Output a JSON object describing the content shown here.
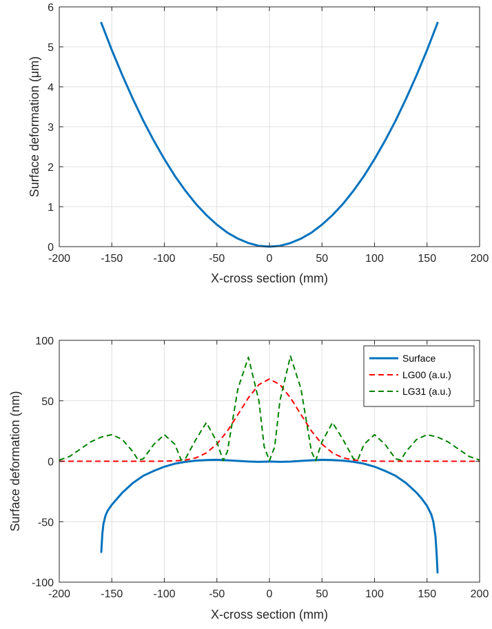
{
  "chart_data": [
    {
      "type": "line",
      "title": "",
      "xlabel": "X-cross section (mm)",
      "ylabel": "Surface deformation (μm)",
      "xlim": [
        -200,
        200
      ],
      "ylim": [
        0,
        6
      ],
      "xticks": [
        -200,
        -150,
        -100,
        -50,
        0,
        50,
        100,
        150,
        200
      ],
      "yticks": [
        0,
        1,
        2,
        3,
        4,
        5,
        6
      ],
      "grid": true,
      "series": [
        {
          "color": "#0072BD",
          "style": "solid",
          "x": [
            -160,
            -150,
            -140,
            -130,
            -120,
            -110,
            -100,
            -90,
            -80,
            -70,
            -60,
            -50,
            -40,
            -30,
            -20,
            -10,
            0,
            10,
            20,
            30,
            40,
            50,
            60,
            70,
            80,
            90,
            100,
            110,
            120,
            130,
            140,
            150,
            160
          ],
          "y": [
            5.6,
            4.92,
            4.29,
            3.7,
            3.15,
            2.65,
            2.19,
            1.77,
            1.4,
            1.07,
            0.79,
            0.55,
            0.35,
            0.2,
            0.09,
            0.02,
            0.0,
            0.02,
            0.09,
            0.2,
            0.35,
            0.55,
            0.79,
            1.07,
            1.4,
            1.77,
            2.19,
            2.65,
            3.15,
            3.7,
            4.29,
            4.92,
            5.6
          ]
        }
      ]
    },
    {
      "type": "line",
      "title": "",
      "xlabel": "X-cross section (mm)",
      "ylabel": "Surface deformation (nm)",
      "xlim": [
        -200,
        200
      ],
      "ylim": [
        -100,
        100
      ],
      "xticks": [
        -200,
        -150,
        -100,
        -50,
        0,
        50,
        100,
        150,
        200
      ],
      "yticks": [
        -100,
        -50,
        0,
        50,
        100
      ],
      "grid": true,
      "legend": "top-right",
      "series": [
        {
          "name": "Surface",
          "color": "#0072BD",
          "style": "solid",
          "x": [
            -160,
            -159,
            -158,
            -156,
            -154,
            -150,
            -145,
            -140,
            -130,
            -120,
            -110,
            -100,
            -90,
            -80,
            -70,
            -60,
            -50,
            -40,
            -30,
            -20,
            -10,
            0,
            10,
            20,
            30,
            40,
            50,
            60,
            70,
            80,
            90,
            100,
            110,
            120,
            130,
            140,
            145,
            150,
            154,
            156,
            158,
            159,
            160
          ],
          "y": [
            -75,
            -60,
            -52,
            -45,
            -41,
            -36,
            -31,
            -26,
            -18,
            -12,
            -8,
            -4.5,
            -2,
            -0.5,
            0.5,
            1,
            1.2,
            0.8,
            0.3,
            -0.2,
            -0.5,
            -0.2,
            -0.5,
            -0.3,
            0.3,
            0.8,
            1.2,
            1,
            0.5,
            -0.5,
            -2,
            -4.5,
            -8,
            -12,
            -18,
            -26,
            -31,
            -37,
            -44,
            -50,
            -62,
            -75,
            -92
          ]
        },
        {
          "name": "LG00 (a.u.)",
          "color": "#FF0000",
          "style": "dashed",
          "x": [
            -200,
            -190,
            -180,
            -170,
            -160,
            -150,
            -140,
            -130,
            -120,
            -110,
            -100,
            -90,
            -80,
            -70,
            -60,
            -50,
            -40,
            -30,
            -20,
            -10,
            0,
            10,
            20,
            30,
            40,
            50,
            60,
            70,
            80,
            90,
            100,
            110,
            120,
            130,
            140,
            150,
            160,
            170,
            180,
            190,
            200
          ],
          "y": [
            0,
            0,
            0,
            0,
            0,
            0,
            0,
            0,
            0,
            0,
            0.1,
            0.3,
            1,
            2.8,
            6.9,
            14.2,
            25,
            38.6,
            52.5,
            63.4,
            68,
            63.4,
            52.5,
            38.6,
            25,
            14.2,
            6.9,
            2.8,
            1,
            0.3,
            0.1,
            0,
            0,
            0,
            0,
            0,
            0,
            0,
            0,
            0,
            0
          ]
        },
        {
          "name": "LG31 (a.u.)",
          "color": "#008000",
          "style": "dashed",
          "x": [
            -200,
            -190,
            -180,
            -170,
            -160,
            -150,
            -140,
            -130,
            -125,
            -120,
            -110,
            -100,
            -90,
            -84,
            -80,
            -70,
            -60,
            -50,
            -44,
            -40,
            -30,
            -20,
            -10,
            -5,
            0,
            5,
            10,
            20,
            30,
            40,
            44,
            50,
            60,
            70,
            80,
            84,
            90,
            100,
            110,
            120,
            125,
            130,
            140,
            150,
            160,
            170,
            180,
            190,
            200
          ],
          "y": [
            1,
            4,
            10,
            16,
            20,
            22,
            18,
            8,
            1,
            2,
            14,
            22,
            14,
            1,
            2,
            18,
            32,
            16,
            0.5,
            8,
            60,
            86,
            50,
            12,
            0.5,
            12,
            50,
            87,
            60,
            8,
            0.5,
            16,
            32,
            18,
            2,
            1,
            14,
            22,
            14,
            2,
            1,
            8,
            18,
            22,
            20,
            16,
            10,
            4,
            1
          ]
        }
      ]
    }
  ]
}
